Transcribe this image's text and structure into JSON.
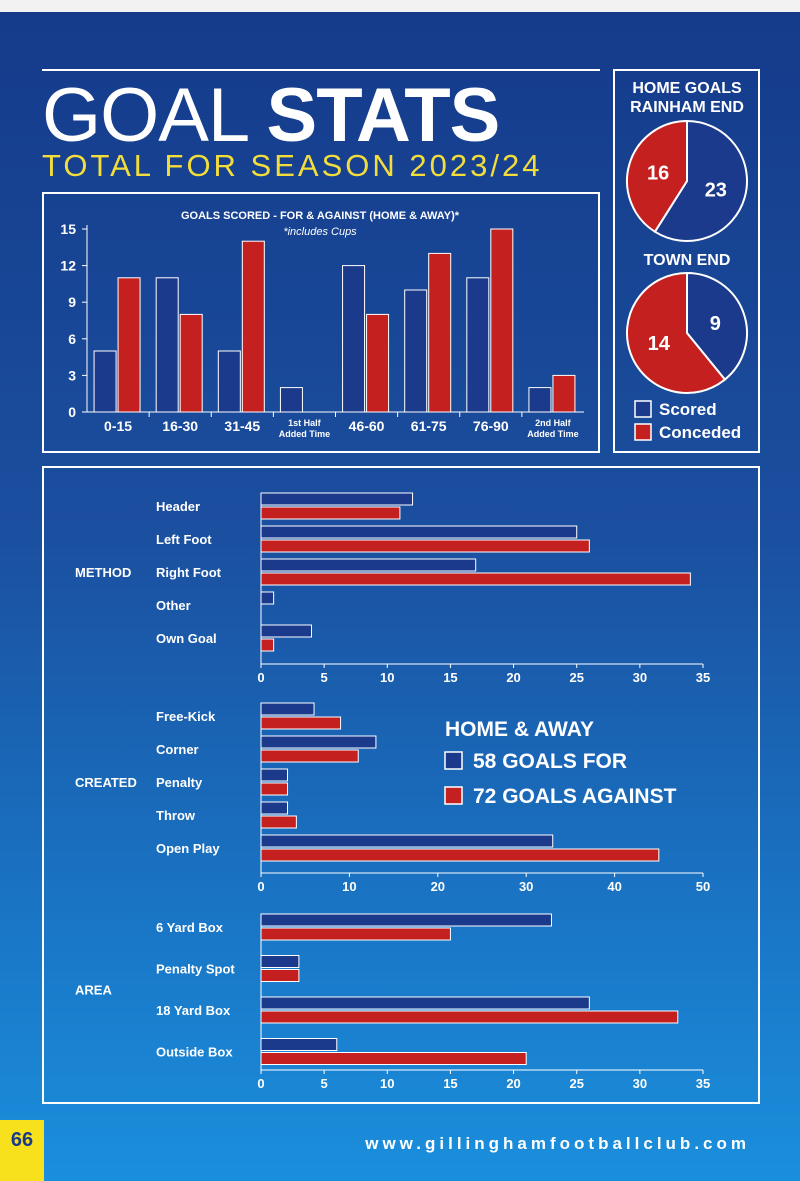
{
  "header": {
    "title_light": "GOAL",
    "title_bold": "STATS",
    "subtitle": "TOTAL FOR SEASON 2023/24"
  },
  "colors": {
    "scored": "#1b3a8c",
    "conceded": "#c4201f",
    "accent_yellow": "#f3dd3b"
  },
  "legend": {
    "scored": "Scored",
    "conceded": "Conceded"
  },
  "home_away": {
    "title": "HOME & AWAY",
    "for_label": "58 GOALS FOR",
    "against_label": "72 GOALS AGAINST"
  },
  "footer": {
    "page_number": "66",
    "website": "www.gillinghamfootballclub.com"
  },
  "chart_data": [
    {
      "id": "time",
      "type": "bar",
      "title": "GOALS SCORED - FOR & AGAINST (HOME & AWAY)*",
      "subtitle": "*includes Cups",
      "categories": [
        "0-15",
        "16-30",
        "31-45",
        "1st Half Added Time",
        "46-60",
        "61-75",
        "76-90",
        "2nd Half Added Time"
      ],
      "series": [
        {
          "name": "Scored",
          "values": [
            5,
            11,
            5,
            2,
            12,
            10,
            11,
            2
          ]
        },
        {
          "name": "Conceded",
          "values": [
            11,
            8,
            14,
            0,
            8,
            13,
            15,
            3
          ]
        }
      ],
      "ylim": [
        0,
        15
      ],
      "yticks": [
        "0",
        "3",
        "6",
        "9",
        "12",
        "15"
      ]
    },
    {
      "id": "rainham",
      "type": "pie",
      "title": "HOME GOALS RAINHAM END",
      "labels": [
        "Scored",
        "Conceded"
      ],
      "values": [
        23,
        16
      ],
      "value_labels": [
        "23",
        "16"
      ]
    },
    {
      "id": "town",
      "type": "pie",
      "title": "TOWN END",
      "labels": [
        "Scored",
        "Conceded"
      ],
      "values": [
        9,
        14
      ],
      "value_labels": [
        "9",
        "14"
      ]
    },
    {
      "id": "method",
      "type": "bar",
      "orientation": "horizontal",
      "group_label": "METHOD",
      "categories": [
        "Header",
        "Left Foot",
        "Right Foot",
        "Other",
        "Own Goal"
      ],
      "series": [
        {
          "name": "Scored",
          "values": [
            12,
            25,
            17,
            1,
            4
          ]
        },
        {
          "name": "Conceded",
          "values": [
            11,
            26,
            34,
            0,
            1
          ]
        }
      ],
      "xlim": [
        0,
        35
      ],
      "xticks": [
        "0",
        "5",
        "10",
        "15",
        "20",
        "25",
        "30",
        "35"
      ]
    },
    {
      "id": "created",
      "type": "bar",
      "orientation": "horizontal",
      "group_label": "CREATED",
      "categories": [
        "Free-Kick",
        "Corner",
        "Penalty",
        "Throw",
        "Open Play"
      ],
      "series": [
        {
          "name": "Scored",
          "values": [
            6,
            13,
            3,
            3,
            33
          ]
        },
        {
          "name": "Conceded",
          "values": [
            9,
            11,
            3,
            4,
            45
          ]
        }
      ],
      "xlim": [
        0,
        50
      ],
      "xticks": [
        "0",
        "10",
        "20",
        "30",
        "40",
        "50"
      ]
    },
    {
      "id": "area",
      "type": "bar",
      "orientation": "horizontal",
      "group_label": "AREA",
      "categories": [
        "6 Yard Box",
        "Penalty Spot",
        "18 Yard Box",
        "Outside Box"
      ],
      "series": [
        {
          "name": "Scored",
          "values": [
            23,
            3,
            26,
            6
          ]
        },
        {
          "name": "Conceded",
          "values": [
            15,
            3,
            33,
            21
          ]
        }
      ],
      "xlim": [
        0,
        35
      ],
      "xticks": [
        "0",
        "5",
        "10",
        "15",
        "20",
        "25",
        "30",
        "35"
      ]
    }
  ]
}
